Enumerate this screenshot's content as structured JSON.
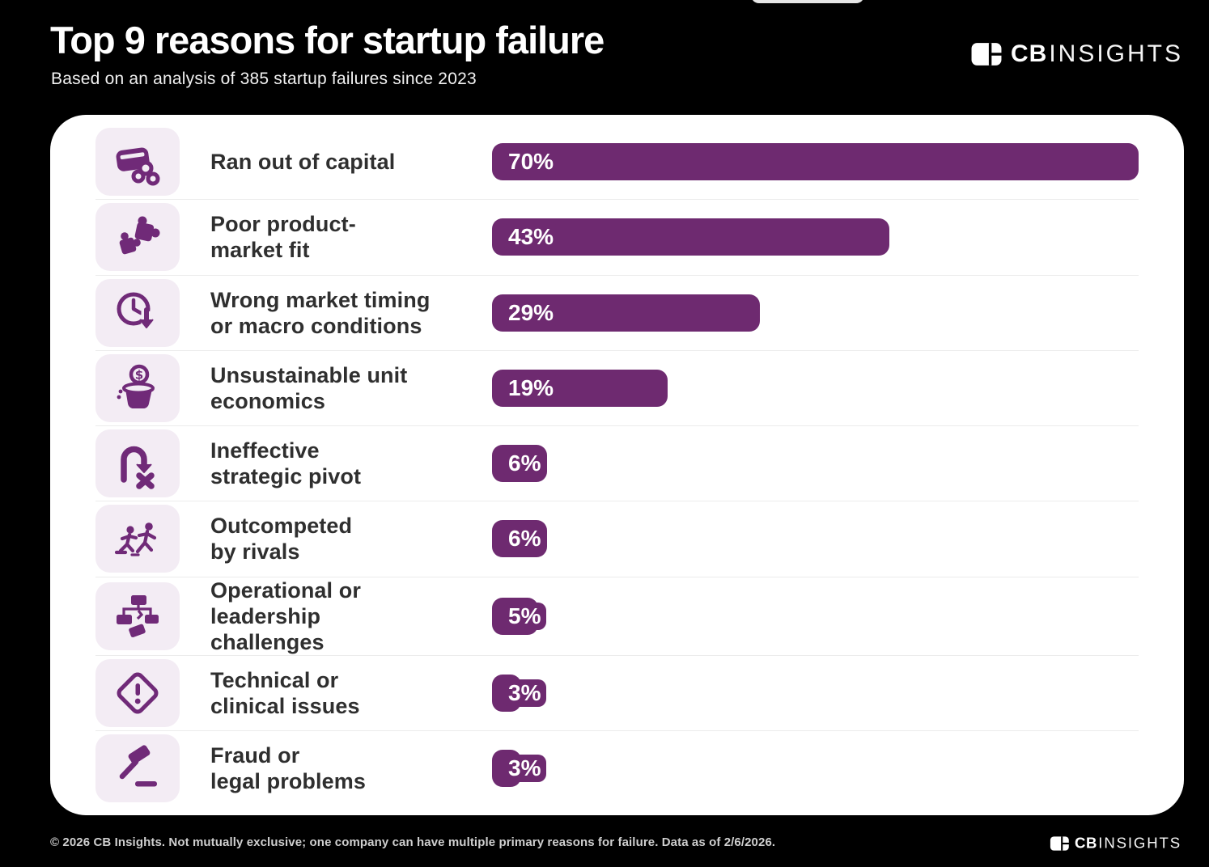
{
  "header": {
    "title": "Top 9 reasons for startup failure",
    "subtitle": "Based on an analysis of 385 startup failures since 2023",
    "logo": {
      "brand_bold": "CB",
      "brand_light": "INSIGHTS",
      "icon": "cb-insights-logo-icon"
    }
  },
  "chart_data": {
    "type": "bar",
    "orientation": "horizontal",
    "title": "Top 9 reasons for startup failure",
    "subtitle": "Based on an analysis of 385 startup failures since 2023",
    "unit": "%",
    "xlim": [
      0,
      70
    ],
    "grid": false,
    "legend": false,
    "categories": [
      "Ran out of capital",
      "Poor product-market fit",
      "Wrong market timing or macro conditions",
      "Unsustainable unit economics",
      "Ineffective strategic pivot",
      "Outcompeted by rivals",
      "Operational or leadership challenges",
      "Technical or clinical issues",
      "Fraud or legal problems"
    ],
    "values": [
      70,
      43,
      29,
      19,
      6,
      6,
      5,
      3,
      3
    ]
  },
  "rows": [
    {
      "label_lines": [
        "Ran out of capital"
      ],
      "value": 70,
      "value_label": "70%",
      "icon": "credit-card-coins-icon"
    },
    {
      "label_lines": [
        "Poor product-",
        "market fit"
      ],
      "value": 43,
      "value_label": "43%",
      "icon": "puzzle-pieces-icon"
    },
    {
      "label_lines": [
        "Wrong market timing",
        "or macro conditions"
      ],
      "value": 29,
      "value_label": "29%",
      "icon": "clock-down-icon"
    },
    {
      "label_lines": [
        "Unsustainable unit",
        "economics"
      ],
      "value": 19,
      "value_label": "19%",
      "icon": "money-pot-icon"
    },
    {
      "label_lines": [
        "Ineffective",
        "strategic pivot"
      ],
      "value": 6,
      "value_label": "6%",
      "icon": "uturn-x-icon"
    },
    {
      "label_lines": [
        "Outcompeted",
        "by rivals"
      ],
      "value": 6,
      "value_label": "6%",
      "icon": "runners-icon"
    },
    {
      "label_lines": [
        "Operational or",
        "leadership",
        "challenges"
      ],
      "value": 5,
      "value_label": "5%",
      "icon": "org-chart-broken-icon"
    },
    {
      "label_lines": [
        "Technical or",
        "clinical issues"
      ],
      "value": 3,
      "value_label": "3%",
      "icon": "warning-diamond-icon"
    },
    {
      "label_lines": [
        "Fraud or",
        "legal problems"
      ],
      "value": 3,
      "value_label": "3%",
      "icon": "gavel-icon"
    }
  ],
  "footer": {
    "note": "© 2026 CB Insights. Not mutually exclusive; one company can have multiple primary reasons for failure. Data as of 2/6/2026.",
    "logo": {
      "brand_bold": "CB",
      "brand_light": "INSIGHTS",
      "icon": "cb-insights-logo-icon"
    }
  },
  "colors": {
    "background": "#000000",
    "card": "#ffffff",
    "bar_purple": "#6e2a70",
    "icon_purple": "#702a78",
    "icon_tile_bg": "#f3ecf4",
    "divider": "#ececec",
    "label_text": "#2f2f2f",
    "footer_text": "#cfcfcf"
  }
}
